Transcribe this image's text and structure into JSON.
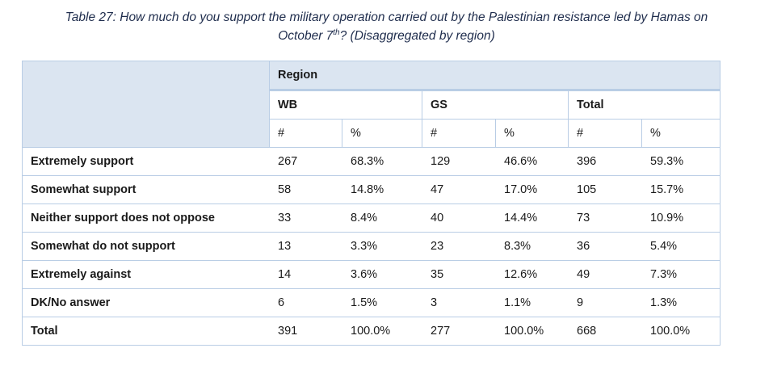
{
  "caption": {
    "line1": "Table 27: How much do you support the military operation carried out by the Palestinian resistance led by Hamas on",
    "line2_prefix": "October 7",
    "line2_sup": "th",
    "line2_suffix": "? (Disaggregated by region)"
  },
  "table": {
    "region_header": "Region",
    "groups": [
      "WB",
      "GS",
      "Total"
    ],
    "subheaders": [
      "#",
      "%",
      "#",
      "%",
      "#",
      "%"
    ],
    "rows": [
      {
        "label": "Extremely support",
        "values": [
          "267",
          "68.3%",
          "129",
          "46.6%",
          "396",
          "59.3%"
        ]
      },
      {
        "label": "Somewhat support",
        "values": [
          "58",
          "14.8%",
          "47",
          "17.0%",
          "105",
          "15.7%"
        ]
      },
      {
        "label": "Neither support does not oppose",
        "values": [
          "33",
          "8.4%",
          "40",
          "14.4%",
          "73",
          "10.9%"
        ]
      },
      {
        "label": "Somewhat do not support",
        "values": [
          "13",
          "3.3%",
          "23",
          "8.3%",
          "36",
          "5.4%"
        ]
      },
      {
        "label": "Extremely against",
        "values": [
          "14",
          "3.6%",
          "35",
          "12.6%",
          "49",
          "7.3%"
        ]
      },
      {
        "label": "DK/No answer",
        "values": [
          "6",
          "1.5%",
          "3",
          "1.1%",
          "9",
          "1.3%"
        ]
      },
      {
        "label": "Total",
        "values": [
          "391",
          "100.0%",
          "277",
          "100.0%",
          "668",
          "100.0%"
        ]
      }
    ]
  },
  "colors": {
    "header_fill": "#dbe5f1",
    "grid_line": "#b9cde5",
    "caption_text": "#1f2d4d"
  }
}
